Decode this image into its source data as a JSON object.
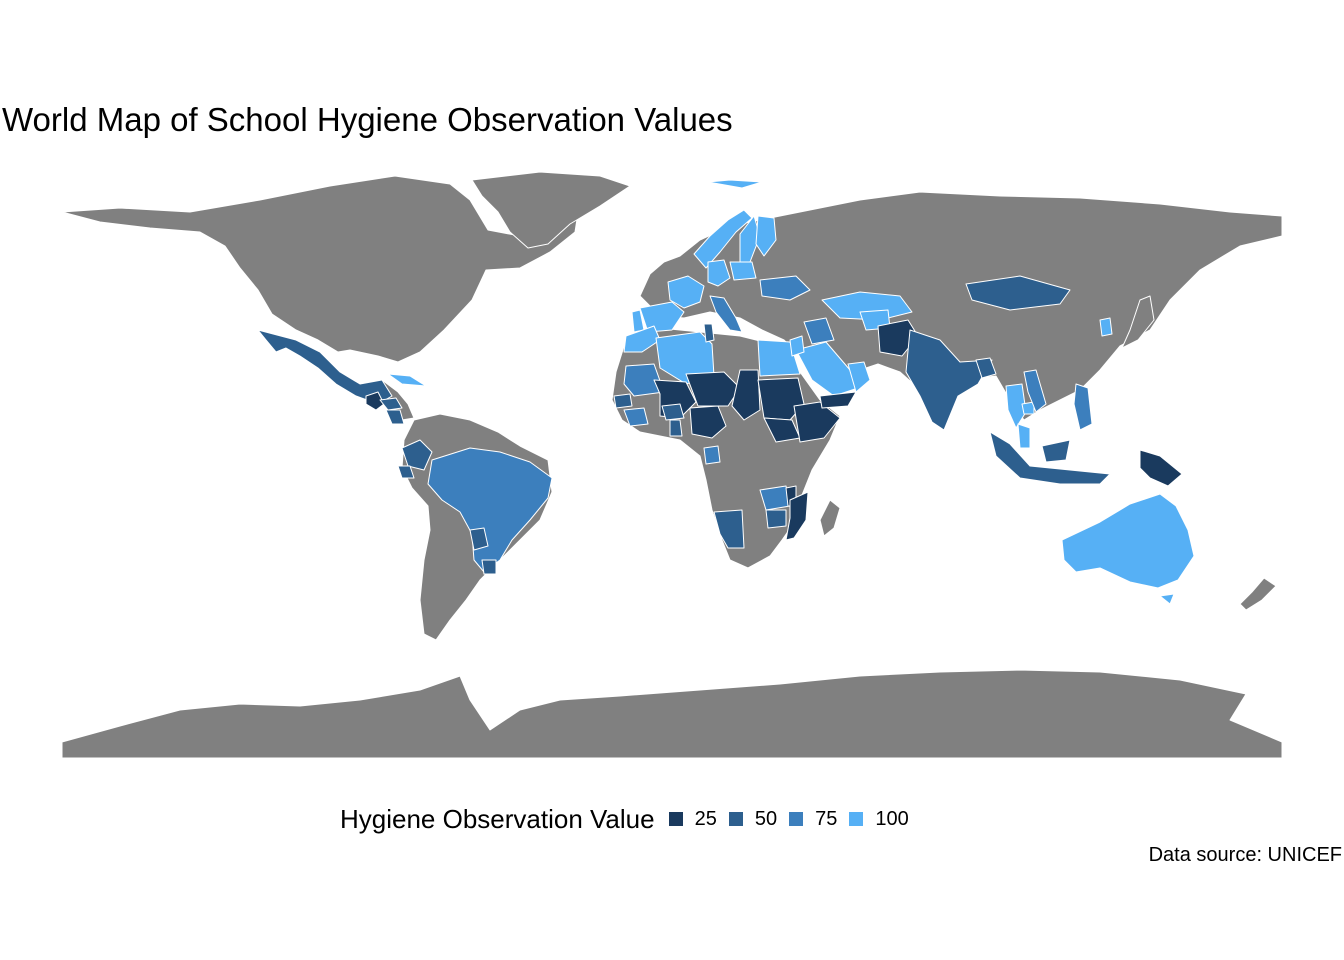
{
  "title": "World Map of School Hygiene Observation Values",
  "caption": "Data source: UNICEF",
  "colors": {
    "no_data": "#808080",
    "border": "#ffffff",
    "background": "#ffffff"
  },
  "legend": {
    "title": "Hygiene Observation Value",
    "placement": "bottom",
    "items": [
      {
        "label": "25",
        "value": 25,
        "color": "#1a3a5e"
      },
      {
        "label": "50",
        "value": 50,
        "color": "#2d5f8e"
      },
      {
        "label": "75",
        "value": 75,
        "color": "#3c7fbd"
      },
      {
        "label": "100",
        "value": 100,
        "color": "#56b0f5"
      }
    ]
  },
  "chart_data": {
    "type": "choropleth",
    "projection": "equirectangular",
    "value_scale": [
      0,
      100
    ],
    "regions": [
      {
        "region": "Mexico",
        "value": 50
      },
      {
        "region": "Guatemala",
        "value": 25
      },
      {
        "region": "Honduras",
        "value": 50
      },
      {
        "region": "Nicaragua",
        "value": 50
      },
      {
        "region": "Cuba",
        "value": 100
      },
      {
        "region": "Colombia",
        "value": 50
      },
      {
        "region": "Ecuador",
        "value": 50
      },
      {
        "region": "Brazil",
        "value": 75
      },
      {
        "region": "Paraguay",
        "value": 50
      },
      {
        "region": "Uruguay",
        "value": 50
      },
      {
        "region": "Iceland",
        "value": 100
      },
      {
        "region": "Norway",
        "value": 100
      },
      {
        "region": "Sweden",
        "value": 100
      },
      {
        "region": "Finland",
        "value": 100
      },
      {
        "region": "Spain",
        "value": 100
      },
      {
        "region": "Portugal",
        "value": 100
      },
      {
        "region": "France",
        "value": 100
      },
      {
        "region": "Germany",
        "value": 100
      },
      {
        "region": "Poland",
        "value": 100
      },
      {
        "region": "Italy",
        "value": 75
      },
      {
        "region": "Ukraine",
        "value": 75
      },
      {
        "region": "Morocco",
        "value": 100
      },
      {
        "region": "Algeria",
        "value": 100
      },
      {
        "region": "Tunisia",
        "value": 50
      },
      {
        "region": "Egypt",
        "value": 100
      },
      {
        "region": "Mauritania",
        "value": 75
      },
      {
        "region": "Mali",
        "value": 25
      },
      {
        "region": "Niger",
        "value": 25
      },
      {
        "region": "Chad",
        "value": 25
      },
      {
        "region": "Sudan",
        "value": 25
      },
      {
        "region": "South Sudan",
        "value": 25
      },
      {
        "region": "Ethiopia",
        "value": 25
      },
      {
        "region": "Nigeria",
        "value": 25
      },
      {
        "region": "Burkina Faso",
        "value": 50
      },
      {
        "region": "Ghana",
        "value": 50
      },
      {
        "region": "Senegal",
        "value": 50
      },
      {
        "region": "Guinea",
        "value": 75
      },
      {
        "region": "Gabon",
        "value": 75
      },
      {
        "region": "Zambia",
        "value": 75
      },
      {
        "region": "Malawi",
        "value": 25
      },
      {
        "region": "Mozambique",
        "value": 25
      },
      {
        "region": "Namibia",
        "value": 50
      },
      {
        "region": "Zimbabwe",
        "value": 50
      },
      {
        "region": "Saudi Arabia",
        "value": 100
      },
      {
        "region": "Oman",
        "value": 100
      },
      {
        "region": "Yemen",
        "value": 25
      },
      {
        "region": "Jordan",
        "value": 100
      },
      {
        "region": "Iraq",
        "value": 75
      },
      {
        "region": "Kazakhstan",
        "value": 100
      },
      {
        "region": "Uzbekistan",
        "value": 100
      },
      {
        "region": "Afghanistan",
        "value": 25
      },
      {
        "region": "India",
        "value": 50
      },
      {
        "region": "Bangladesh",
        "value": 50
      },
      {
        "region": "Mongolia",
        "value": 50
      },
      {
        "region": "Thailand",
        "value": 100
      },
      {
        "region": "Cambodia",
        "value": 100
      },
      {
        "region": "Vietnam",
        "value": 75
      },
      {
        "region": "Philippines",
        "value": 75
      },
      {
        "region": "Indonesia",
        "value": 50
      },
      {
        "region": "Malaysia",
        "value": 100
      },
      {
        "region": "Papua New Guinea",
        "value": 25
      },
      {
        "region": "Australia",
        "value": 100
      },
      {
        "region": "South Korea",
        "value": 100
      }
    ]
  }
}
